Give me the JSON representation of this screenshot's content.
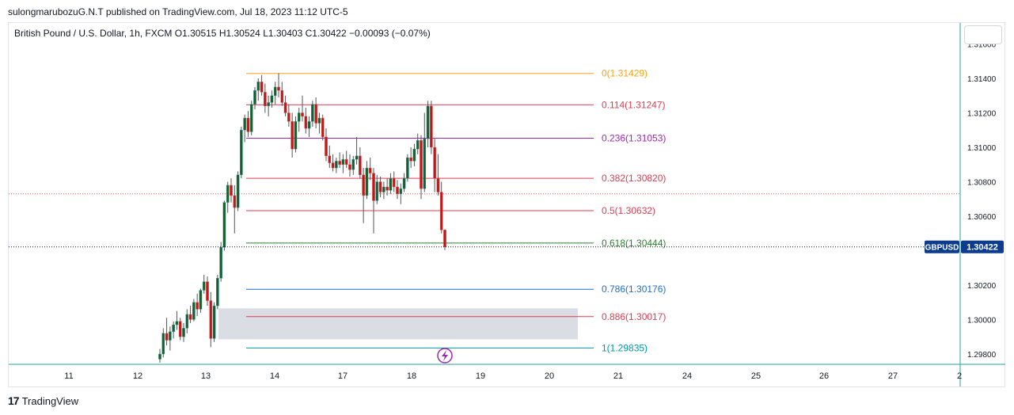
{
  "header": {
    "published_text": "sulongmarubozuG.N.T published on TradingView.com, Jul 18, 2023 11:12 UTC-5"
  },
  "legend": {
    "symbol_line": "British Pound / U.S. Dollar, 1h, FXCM",
    "open": "O1.30515",
    "high": "H1.30524",
    "low": "L1.30403",
    "close": "C1.30422",
    "change": "−0.00093 (−0.07%)"
  },
  "footer": {
    "brand": "TradingView"
  },
  "colors": {
    "up": "#26a69a",
    "down": "#ef5350",
    "candle_body_up": "#1e5b2e",
    "candle_body_down": "#b71c1c",
    "price_badge": "#0d3c8c"
  },
  "chart_data": {
    "type": "candlestick",
    "symbol": "GBPUSD",
    "last_price": "1.30422",
    "ylim": [
      1.2977,
      1.317
    ],
    "y_ticks": [
      {
        "value": 1.316,
        "label": "1.31600"
      },
      {
        "value": 1.314,
        "label": "1.31400"
      },
      {
        "value": 1.312,
        "label": "1.31200"
      },
      {
        "value": 1.31,
        "label": "1.31000"
      },
      {
        "value": 1.308,
        "label": "1.30800"
      },
      {
        "value": 1.306,
        "label": "1.30600"
      },
      {
        "value": 1.302,
        "label": "1.30200"
      },
      {
        "value": 1.3,
        "label": "1.30000"
      },
      {
        "value": 1.298,
        "label": "1.29800"
      }
    ],
    "x_ticks": [
      "11",
      "12",
      "13",
      "14",
      "17",
      "18",
      "19",
      "20",
      "21",
      "24",
      "25",
      "26",
      "27",
      "2"
    ],
    "fib_levels": [
      {
        "ratio": "0",
        "price": 1.31429,
        "label": "0(1.31429)",
        "color": "#f7a21b"
      },
      {
        "ratio": "0.114",
        "price": 1.31247,
        "label": "0.114(1.31247)",
        "color": "#e03b52"
      },
      {
        "ratio": "0.236",
        "price": 1.31053,
        "label": "0.236(1.31053)",
        "color": "#9c27b0"
      },
      {
        "ratio": "0.382",
        "price": 1.3082,
        "label": "0.382(1.30820)",
        "color": "#e03b52"
      },
      {
        "ratio": "0.5",
        "price": 1.30632,
        "label": "0.5(1.30632)",
        "color": "#e03b52"
      },
      {
        "ratio": "0.618",
        "price": 1.30444,
        "label": "0.618(1.30444)",
        "color": "#2e7d32"
      },
      {
        "ratio": "0.786",
        "price": 1.30176,
        "label": "0.786(1.30176)",
        "color": "#1e6fc9"
      },
      {
        "ratio": "0.886",
        "price": 1.30017,
        "label": "0.886(1.30017)",
        "color": "#e03b52"
      },
      {
        "ratio": "1",
        "price": 1.29835,
        "label": "1(1.29835)",
        "color": "#0097a7"
      }
    ],
    "zone": {
      "top": 1.30065,
      "bottom": 1.29885
    },
    "prev_close_line": 1.3073,
    "candles": [
      [
        1.2977,
        1.2983,
        1.2975,
        1.298
      ],
      [
        1.298,
        1.2995,
        1.2978,
        1.2992
      ],
      [
        1.2992,
        1.3001,
        1.2985,
        1.2988
      ],
      [
        1.2988,
        1.2996,
        1.2982,
        1.2993
      ],
      [
        1.2993,
        1.2999,
        1.2989,
        1.2997
      ],
      [
        1.2997,
        1.3005,
        1.2994,
        1.2999
      ],
      [
        1.2999,
        1.3001,
        1.2988,
        1.299
      ],
      [
        1.299,
        1.2998,
        1.2987,
        1.2995
      ],
      [
        1.2995,
        1.3006,
        1.2992,
        1.3003
      ],
      [
        1.3003,
        1.3008,
        1.2998,
        1.3
      ],
      [
        1.3,
        1.3012,
        1.2999,
        1.301
      ],
      [
        1.301,
        1.3015,
        1.3002,
        1.3006
      ],
      [
        1.3006,
        1.3018,
        1.3004,
        1.3017
      ],
      [
        1.3017,
        1.3026,
        1.3015,
        1.3022
      ],
      [
        1.3022,
        1.3025,
        1.3008,
        1.3011
      ],
      [
        1.3011,
        1.3016,
        1.2984,
        1.2989
      ],
      [
        1.2989,
        1.301,
        1.2987,
        1.3008
      ],
      [
        1.3008,
        1.3026,
        1.3006,
        1.3024
      ],
      [
        1.3024,
        1.3045,
        1.3022,
        1.3042
      ],
      [
        1.3042,
        1.3069,
        1.304,
        1.3068
      ],
      [
        1.3068,
        1.308,
        1.3062,
        1.3078
      ],
      [
        1.3078,
        1.3082,
        1.3068,
        1.3072
      ],
      [
        1.3072,
        1.3078,
        1.305,
        1.3065
      ],
      [
        1.3065,
        1.3086,
        1.3063,
        1.3084
      ],
      [
        1.3084,
        1.3112,
        1.3082,
        1.311
      ],
      [
        1.311,
        1.3119,
        1.3103,
        1.3117
      ],
      [
        1.3117,
        1.3121,
        1.3106,
        1.3109
      ],
      [
        1.3109,
        1.3127,
        1.3107,
        1.3125
      ],
      [
        1.3125,
        1.3135,
        1.3122,
        1.3133
      ],
      [
        1.3133,
        1.314,
        1.3127,
        1.3138
      ],
      [
        1.3138,
        1.3142,
        1.313,
        1.3132
      ],
      [
        1.3132,
        1.3137,
        1.312,
        1.3124
      ],
      [
        1.3124,
        1.313,
        1.3118,
        1.3126
      ],
      [
        1.3126,
        1.3133,
        1.3123,
        1.313
      ],
      [
        1.313,
        1.3138,
        1.3125,
        1.3135
      ],
      [
        1.3135,
        1.3143,
        1.3129,
        1.3133
      ],
      [
        1.3133,
        1.3138,
        1.3124,
        1.3126
      ],
      [
        1.3126,
        1.313,
        1.3118,
        1.312
      ],
      [
        1.312,
        1.3125,
        1.3112,
        1.3115
      ],
      [
        1.3115,
        1.312,
        1.3094,
        1.3099
      ],
      [
        1.3099,
        1.3118,
        1.3097,
        1.3115
      ],
      [
        1.3115,
        1.3123,
        1.3109,
        1.312
      ],
      [
        1.312,
        1.313,
        1.3115,
        1.3118
      ],
      [
        1.3118,
        1.3123,
        1.3108,
        1.3111
      ],
      [
        1.3111,
        1.3118,
        1.3106,
        1.3115
      ],
      [
        1.3115,
        1.3127,
        1.3112,
        1.3125
      ],
      [
        1.3125,
        1.3129,
        1.3111,
        1.3114
      ],
      [
        1.3114,
        1.312,
        1.3108,
        1.3117
      ],
      [
        1.3117,
        1.3119,
        1.3104,
        1.3106
      ],
      [
        1.3106,
        1.3111,
        1.3092,
        1.3095
      ],
      [
        1.3095,
        1.3101,
        1.3088,
        1.3091
      ],
      [
        1.3091,
        1.3096,
        1.3086,
        1.3088
      ],
      [
        1.3088,
        1.3094,
        1.3085,
        1.3092
      ],
      [
        1.3092,
        1.3097,
        1.3088,
        1.309
      ],
      [
        1.309,
        1.3096,
        1.3085,
        1.3093
      ],
      [
        1.3093,
        1.3098,
        1.3088,
        1.309
      ],
      [
        1.309,
        1.3096,
        1.3083,
        1.3087
      ],
      [
        1.3087,
        1.3095,
        1.3084,
        1.3093
      ],
      [
        1.3093,
        1.3106,
        1.309,
        1.3095
      ],
      [
        1.3095,
        1.31,
        1.3082,
        1.3084
      ],
      [
        1.3084,
        1.3088,
        1.3056,
        1.3072
      ],
      [
        1.3072,
        1.3092,
        1.307,
        1.3088
      ],
      [
        1.3088,
        1.3094,
        1.3081,
        1.3085
      ],
      [
        1.3085,
        1.3088,
        1.305,
        1.3069
      ],
      [
        1.3069,
        1.3084,
        1.3067,
        1.308
      ],
      [
        1.308,
        1.3083,
        1.3071,
        1.3074
      ],
      [
        1.3074,
        1.308,
        1.307,
        1.3077
      ],
      [
        1.3077,
        1.3082,
        1.3072,
        1.3075
      ],
      [
        1.3075,
        1.3085,
        1.3073,
        1.3082
      ],
      [
        1.3082,
        1.3086,
        1.3074,
        1.3077
      ],
      [
        1.3077,
        1.3081,
        1.307,
        1.3073
      ],
      [
        1.3073,
        1.3079,
        1.3067,
        1.3076
      ],
      [
        1.3076,
        1.3085,
        1.3074,
        1.3082
      ],
      [
        1.3082,
        1.3096,
        1.308,
        1.3094
      ],
      [
        1.3094,
        1.31,
        1.3088,
        1.3092
      ],
      [
        1.3092,
        1.3102,
        1.3089,
        1.3099
      ],
      [
        1.3099,
        1.3108,
        1.3096,
        1.3104
      ],
      [
        1.3104,
        1.3107,
        1.307,
        1.3076
      ],
      [
        1.3076,
        1.312,
        1.3074,
        1.3105
      ],
      [
        1.3105,
        1.3127,
        1.31,
        1.3124
      ],
      [
        1.3124,
        1.3127,
        1.3096,
        1.31
      ],
      [
        1.31,
        1.3105,
        1.3074,
        1.3082
      ],
      [
        1.3082,
        1.3096,
        1.3072,
        1.3074
      ],
      [
        1.3074,
        1.308,
        1.305,
        1.3052
      ],
      [
        1.3052,
        1.30524,
        1.30403,
        1.30422
      ]
    ]
  }
}
